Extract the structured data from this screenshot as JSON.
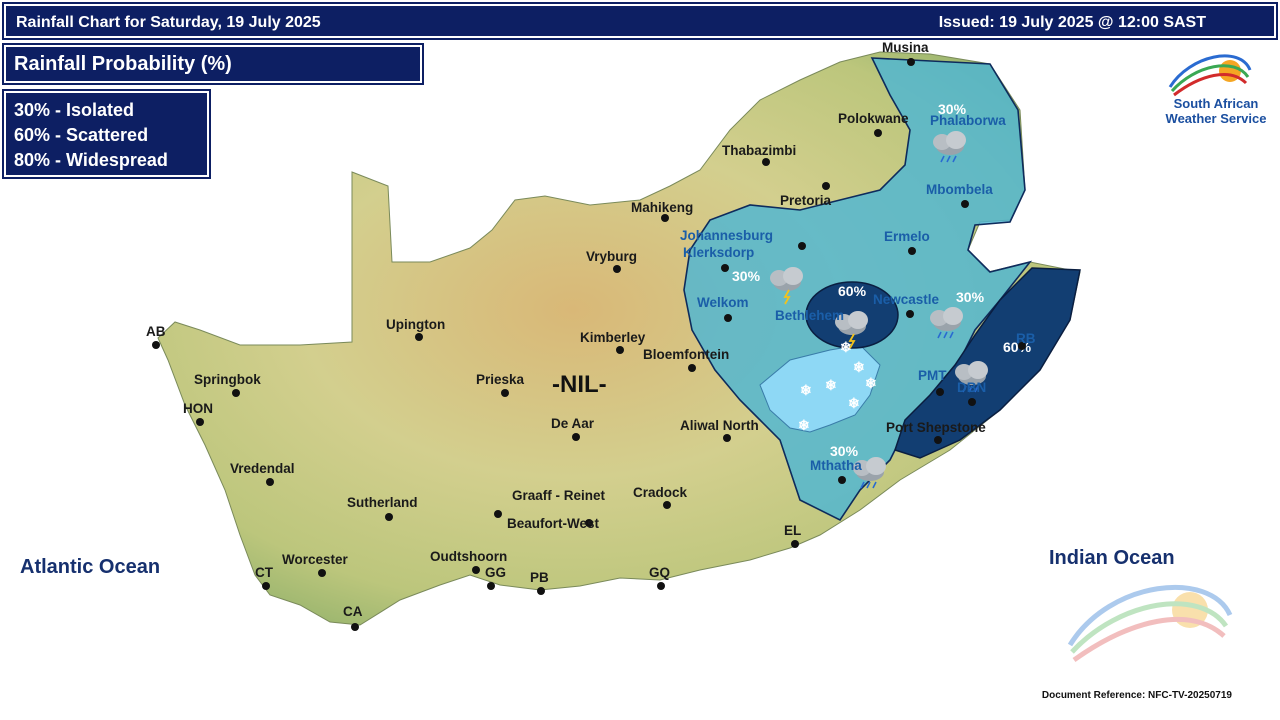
{
  "header": {
    "title": "Rainfall Chart for Saturday, 19 July 2025",
    "issued": "Issued: 19 July 2025 @ 12:00 SAST"
  },
  "legend": {
    "title": "Rainfall Probability (%)",
    "items": [
      "30% - Isolated",
      "60% - Scattered",
      "80% - Widespread"
    ]
  },
  "map": {
    "nil_label": "-NIL-",
    "cities": {
      "musina": "Musina",
      "polokwane": "Polokwane",
      "phalaborwa": "Phalaborwa",
      "thabazimbi": "Thabazimbi",
      "mbombela": "Mbombela",
      "pretoria": "Pretoria",
      "mahikeng": "Mahikeng",
      "johannesburg": "Johannesburg",
      "klerksdorp": "Klerksdorp",
      "ermelo": "Ermelo",
      "vryburg": "Vryburg",
      "welkom": "Welkom",
      "bethlehem": "Bethlehem",
      "newcastle": "Newcastle",
      "rb": "RB",
      "ab": "AB",
      "upington": "Upington",
      "kimberley": "Kimberley",
      "springbok": "Springbok",
      "prieska": "Prieska",
      "bloemfontein": "Bloemfontein",
      "pmb": "PMT",
      "dbn": "DBN",
      "hon": "HON",
      "de_aar": "De Aar",
      "aliwal_north": "Aliwal North",
      "port_shepstone": "Port Shepstone",
      "vredendal": "Vredendal",
      "mthatha": "Mthatha",
      "sutherland": "Sutherland",
      "graaff_reinet": "Graaff - Reinet",
      "cradock": "Cradock",
      "beaufort_west": "Beaufort-West",
      "el": "EL",
      "worcester": "Worcester",
      "oudtshoorn": "Oudtshoorn",
      "ct": "CT",
      "gg": "GG",
      "pb": "PB",
      "gq": "GQ",
      "ca": "CA"
    },
    "zones": {
      "north_pct": "30%",
      "central_pct": "30%",
      "bethlehem_pct": "60%",
      "newcastle_pct": "30%",
      "kzn_pct": "60%",
      "mthatha_pct": "30%"
    },
    "colors": {
      "zone_30": "#4eb6d3",
      "zone_60": "#123e72",
      "snow": "#8ed8f5",
      "land": "#c8c67a"
    }
  },
  "oceans": {
    "atlantic": "Atlantic Ocean",
    "indian": "Indian Ocean"
  },
  "logo": {
    "line1": "South African",
    "line2": "Weather Service"
  },
  "footer": {
    "doc_ref": "Document Reference: NFC-TV-20250719"
  }
}
